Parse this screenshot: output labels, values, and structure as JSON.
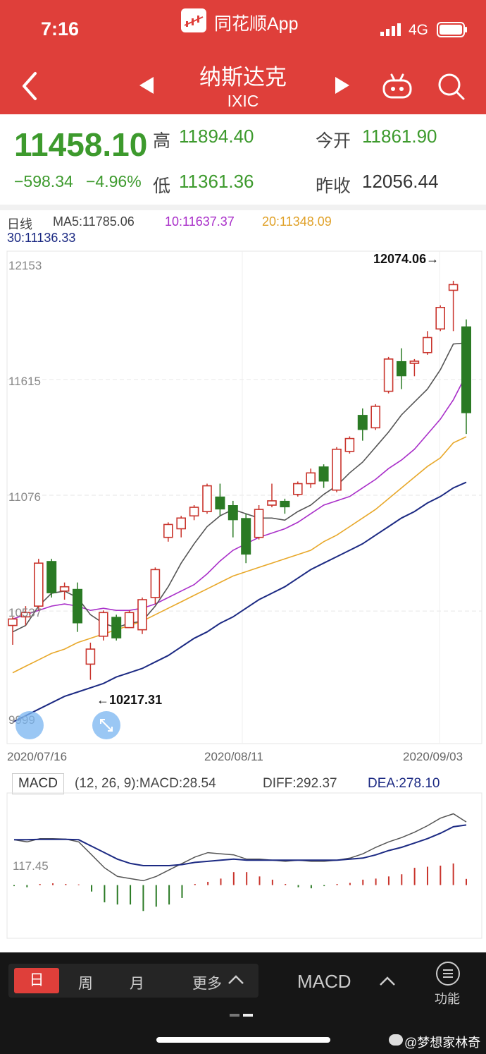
{
  "status_bar": {
    "time": "7:16",
    "app_name": "同花顺App",
    "network": "4G"
  },
  "header": {
    "title": "纳斯达克",
    "code": "IXIC"
  },
  "quote": {
    "price": "11458.10",
    "change": "−598.34",
    "change_pct": "−4.96%",
    "high_label": "高",
    "high": "11894.40",
    "low_label": "低",
    "low": "11361.36",
    "open_label": "今开",
    "open": "11861.90",
    "prev_label": "昨收",
    "prev_close": "12056.44"
  },
  "ma_legend": {
    "period": "日线",
    "ma5": "MA5:11785.06",
    "ma10": "10:11637.37",
    "ma20": "20:11348.09",
    "ma30": "30:11136.33"
  },
  "colors": {
    "header_bg": "#df3f3a",
    "up": "#c9342c",
    "down": "#2a7a24",
    "ma5": "#555555",
    "ma10": "#a92fc9",
    "ma20": "#e8a82a",
    "ma30": "#1c2a83",
    "price_green": "#3d9a2d"
  },
  "chart_data": [
    {
      "type": "candlestick",
      "title": "日线",
      "y_ticks": [
        "12153",
        "11615",
        "11076",
        "10537",
        "9999"
      ],
      "ylim": [
        9999,
        12153
      ],
      "x_ticks": [
        "2020/07/16",
        "2020/08/11",
        "2020/09/03"
      ],
      "annotations": {
        "max": "12074.06→",
        "min": "←10217.31"
      },
      "candles": [
        {
          "o": 10470,
          "h": 10510,
          "l": 10380,
          "c": 10500
        },
        {
          "o": 10510,
          "h": 10560,
          "l": 10470,
          "c": 10530
        },
        {
          "o": 10560,
          "h": 10780,
          "l": 10540,
          "c": 10760
        },
        {
          "o": 10770,
          "h": 10780,
          "l": 10600,
          "c": 10620
        },
        {
          "o": 10630,
          "h": 10670,
          "l": 10590,
          "c": 10650
        },
        {
          "o": 10640,
          "h": 10670,
          "l": 10440,
          "c": 10480
        },
        {
          "o": 10290,
          "h": 10390,
          "l": 10217,
          "c": 10360
        },
        {
          "o": 10420,
          "h": 10540,
          "l": 10400,
          "c": 10530
        },
        {
          "o": 10510,
          "h": 10520,
          "l": 10400,
          "c": 10410
        },
        {
          "o": 10460,
          "h": 10540,
          "l": 10460,
          "c": 10530
        },
        {
          "o": 10450,
          "h": 10600,
          "l": 10430,
          "c": 10590
        },
        {
          "o": 10600,
          "h": 10740,
          "l": 10570,
          "c": 10730
        },
        {
          "o": 10880,
          "h": 10950,
          "l": 10860,
          "c": 10940
        },
        {
          "o": 10920,
          "h": 10980,
          "l": 10880,
          "c": 10970
        },
        {
          "o": 10980,
          "h": 11030,
          "l": 10960,
          "c": 11020
        },
        {
          "o": 11000,
          "h": 11130,
          "l": 10990,
          "c": 11120
        },
        {
          "o": 11070,
          "h": 11130,
          "l": 10980,
          "c": 11010
        },
        {
          "o": 11030,
          "h": 11050,
          "l": 10880,
          "c": 10960
        },
        {
          "o": 10970,
          "h": 10990,
          "l": 10760,
          "c": 10800
        },
        {
          "o": 10880,
          "h": 11030,
          "l": 10870,
          "c": 11010
        },
        {
          "o": 11030,
          "h": 11130,
          "l": 11020,
          "c": 11050
        },
        {
          "o": 11050,
          "h": 11060,
          "l": 10990,
          "c": 11020
        },
        {
          "o": 11080,
          "h": 11140,
          "l": 11070,
          "c": 11130
        },
        {
          "o": 11130,
          "h": 11200,
          "l": 11110,
          "c": 11180
        },
        {
          "o": 11210,
          "h": 11220,
          "l": 11110,
          "c": 11140
        },
        {
          "o": 11100,
          "h": 11300,
          "l": 11090,
          "c": 11290
        },
        {
          "o": 11280,
          "h": 11350,
          "l": 11270,
          "c": 11340
        },
        {
          "o": 11450,
          "h": 11480,
          "l": 11330,
          "c": 11380
        },
        {
          "o": 11390,
          "h": 11500,
          "l": 11380,
          "c": 11490
        },
        {
          "o": 11560,
          "h": 11720,
          "l": 11550,
          "c": 11710
        },
        {
          "o": 11700,
          "h": 11760,
          "l": 11570,
          "c": 11630
        },
        {
          "o": 11690,
          "h": 11710,
          "l": 11630,
          "c": 11700
        },
        {
          "o": 11740,
          "h": 11840,
          "l": 11730,
          "c": 11810
        },
        {
          "o": 11850,
          "h": 11960,
          "l": 11840,
          "c": 11950
        },
        {
          "o": 12030,
          "h": 12074.06,
          "l": 11840,
          "c": 12056.44
        },
        {
          "o": 11861.9,
          "h": 11894.4,
          "l": 11361.36,
          "c": 11458.1
        }
      ],
      "ma5": [
        10440,
        10470,
        10560,
        10620,
        10630,
        10600,
        10520,
        10480,
        10460,
        10480,
        10490,
        10560,
        10650,
        10760,
        10850,
        10930,
        10980,
        11010,
        10990,
        10970,
        10970,
        10960,
        11000,
        11030,
        11080,
        11120,
        11180,
        11230,
        11300,
        11370,
        11450,
        11510,
        11570,
        11660,
        11780,
        11785.06
      ],
      "ma10": [
        10500,
        10520,
        10540,
        10560,
        10570,
        10560,
        10540,
        10550,
        10540,
        10540,
        10550,
        10570,
        10600,
        10630,
        10660,
        10710,
        10770,
        10820,
        10850,
        10880,
        10900,
        10920,
        10950,
        10990,
        11030,
        11050,
        11070,
        11110,
        11150,
        11200,
        11240,
        11290,
        11360,
        11430,
        11520,
        11637.37
      ],
      "ma20": [
        10250,
        10280,
        10310,
        10340,
        10360,
        10390,
        10410,
        10430,
        10450,
        10470,
        10490,
        10520,
        10550,
        10580,
        10610,
        10640,
        10670,
        10700,
        10720,
        10740,
        10760,
        10780,
        10800,
        10820,
        10860,
        10890,
        10930,
        10970,
        11010,
        11060,
        11110,
        11160,
        11210,
        11250,
        11320,
        11348.09
      ],
      "ma30": [
        10020,
        10050,
        10080,
        10110,
        10140,
        10160,
        10180,
        10200,
        10230,
        10250,
        10270,
        10300,
        10330,
        10370,
        10410,
        10440,
        10480,
        10510,
        10550,
        10590,
        10620,
        10650,
        10690,
        10730,
        10760,
        10790,
        10820,
        10850,
        10890,
        10930,
        10970,
        11000,
        11040,
        11070,
        11110,
        11136.33
      ]
    },
    {
      "type": "bar",
      "title": "MACD",
      "params": "(12, 26, 9):MACD:28.54",
      "diff_label": "DIFF:292.37",
      "dea_label": "DEA:278.10",
      "y_tick": "117.45",
      "ylim": [
        -240,
        420
      ],
      "values": [
        -5,
        -10,
        5,
        8,
        5,
        3,
        -30,
        -80,
        -90,
        -90,
        -120,
        -100,
        -90,
        -60,
        5,
        15,
        30,
        60,
        60,
        40,
        25,
        5,
        -10,
        -15,
        -5,
        5,
        10,
        25,
        30,
        40,
        50,
        80,
        85,
        90,
        100,
        28.54
      ],
      "diff": [
        210,
        200,
        215,
        215,
        213,
        200,
        140,
        80,
        40,
        30,
        20,
        40,
        70,
        100,
        130,
        150,
        145,
        140,
        120,
        120,
        115,
        110,
        115,
        110,
        110,
        115,
        125,
        145,
        175,
        200,
        220,
        245,
        275,
        310,
        330,
        292.37
      ],
      "dea": [
        210,
        210,
        212,
        212,
        212,
        210,
        180,
        150,
        120,
        100,
        90,
        90,
        90,
        95,
        105,
        110,
        115,
        120,
        115,
        115,
        115,
        115,
        115,
        115,
        115,
        115,
        120,
        125,
        140,
        160,
        175,
        195,
        215,
        240,
        270,
        278.1
      ]
    }
  ],
  "bottom_bar": {
    "tabs": [
      "日",
      "周",
      "月",
      "更多"
    ],
    "indicator": "MACD",
    "function_label": "功能",
    "watermark": "@梦想家林奇"
  }
}
